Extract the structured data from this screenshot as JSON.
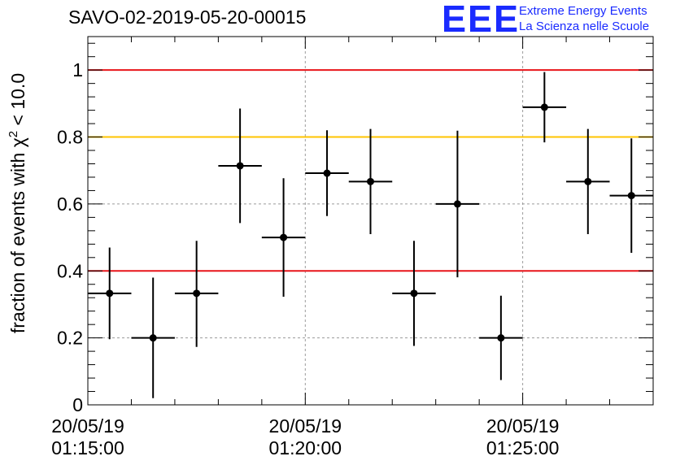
{
  "chart_data": {
    "type": "scatter",
    "title": "SAVO-02-2019-05-20-00015",
    "ylabel": "fraction of events with",
    "ylabel_symbol": "χ",
    "ylabel_exponent": "2",
    "ylabel_tail": "< 10.0",
    "xlabel": "",
    "xlim_minutes": [
      0,
      13
    ],
    "ylim": [
      0,
      1.1
    ],
    "x_ticks": [
      {
        "minute": 0,
        "date": "20/05/19",
        "time": "01:15:00"
      },
      {
        "minute": 5,
        "date": "20/05/19",
        "time": "01:20:00"
      },
      {
        "minute": 10,
        "date": "20/05/19",
        "time": "01:25:00"
      }
    ],
    "y_ticks": [
      {
        "value": 0,
        "label": "0"
      },
      {
        "value": 0.2,
        "label": "0.2"
      },
      {
        "value": 0.4,
        "label": "0.4"
      },
      {
        "value": 0.6,
        "label": "0.6"
      },
      {
        "value": 0.8,
        "label": "0.8"
      },
      {
        "value": 1.0,
        "label": "1"
      }
    ],
    "grid": true,
    "reference_lines": [
      {
        "y": 1.0,
        "color": "#e8141a"
      },
      {
        "y": 0.8,
        "color": "#ffc400"
      },
      {
        "y": 0.4,
        "color": "#e8141a"
      }
    ],
    "marker_color": "#000000",
    "points": [
      {
        "x_start": 0.0,
        "x_end": 1.0,
        "y": 0.333,
        "err_low": 0.137,
        "err_high": 0.137
      },
      {
        "x_start": 1.0,
        "x_end": 2.0,
        "y": 0.2,
        "err_low": 0.18,
        "err_high": 0.18
      },
      {
        "x_start": 2.0,
        "x_end": 3.0,
        "y": 0.333,
        "err_low": 0.16,
        "err_high": 0.157
      },
      {
        "x_start": 3.0,
        "x_end": 4.0,
        "y": 0.714,
        "err_low": 0.171,
        "err_high": 0.171
      },
      {
        "x_start": 4.0,
        "x_end": 5.0,
        "y": 0.5,
        "err_low": 0.177,
        "err_high": 0.177
      },
      {
        "x_start": 5.0,
        "x_end": 6.0,
        "y": 0.692,
        "err_low": 0.128,
        "err_high": 0.128
      },
      {
        "x_start": 6.0,
        "x_end": 7.0,
        "y": 0.667,
        "err_low": 0.157,
        "err_high": 0.157
      },
      {
        "x_start": 7.0,
        "x_end": 8.0,
        "y": 0.333,
        "err_low": 0.157,
        "err_high": 0.157
      },
      {
        "x_start": 8.0,
        "x_end": 9.0,
        "y": 0.6,
        "err_low": 0.219,
        "err_high": 0.219
      },
      {
        "x_start": 9.0,
        "x_end": 10.0,
        "y": 0.2,
        "err_low": 0.126,
        "err_high": 0.126
      },
      {
        "x_start": 10.0,
        "x_end": 11.0,
        "y": 0.889,
        "err_low": 0.105,
        "err_high": 0.105
      },
      {
        "x_start": 11.0,
        "x_end": 12.0,
        "y": 0.667,
        "err_low": 0.157,
        "err_high": 0.157
      },
      {
        "x_start": 12.0,
        "x_end": 13.0,
        "y": 0.625,
        "err_low": 0.171,
        "err_high": 0.171
      }
    ]
  },
  "logo": {
    "mark": "EEE",
    "line1": "Extreme Energy Events",
    "line2": "La Scienza nelle Scuole"
  }
}
